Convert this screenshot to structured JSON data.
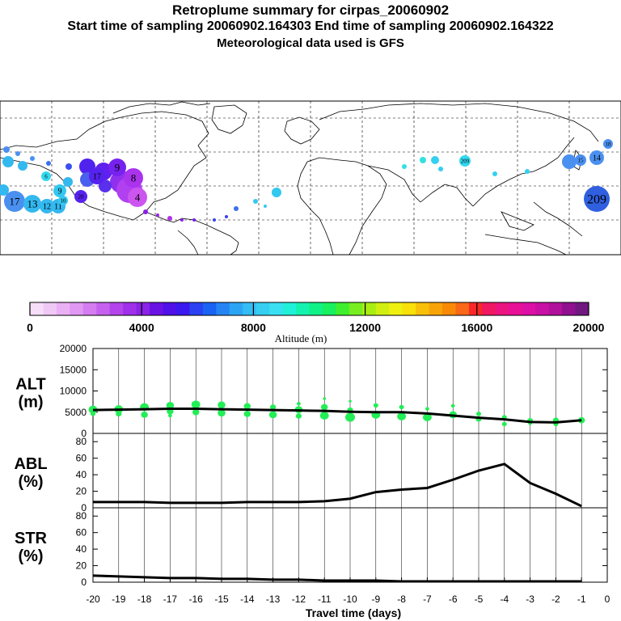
{
  "header": {
    "title": "Retroplume summary for cirpas_20060902",
    "sampling_line": "Start time of sampling 20060902.164303     End time of sampling 20060902.164322",
    "met_line": "Meteorological data used is GFS"
  },
  "colors": {
    "alt_marker": "#22ee55",
    "line": "#000000",
    "map_bg": "#ffffff",
    "map_land": "#000000"
  },
  "map": {
    "plume_labels": [
      {
        "text": "17",
        "color": "#4a90f0",
        "size": "large"
      },
      {
        "text": "13",
        "color": "#33b8f0",
        "size": "large"
      },
      {
        "text": "12",
        "color": "#33b8f0",
        "size": "medium"
      },
      {
        "text": "11",
        "color": "#33b8f0",
        "size": "medium"
      },
      {
        "text": "9",
        "color": "#33c8f0",
        "size": "medium"
      },
      {
        "text": "10",
        "color": "#33c8f0",
        "size": "small"
      },
      {
        "text": "209",
        "color": "#3060e0",
        "size": "xlarge"
      },
      {
        "text": "14",
        "color": "#4a90f0",
        "size": "medium"
      },
      {
        "text": "15",
        "color": "#4a90f0",
        "size": "small"
      },
      {
        "text": "18",
        "color": "#4a90f0",
        "size": "small"
      },
      {
        "text": "209",
        "color": "#33d8f0",
        "size": "small"
      },
      {
        "text": "8",
        "color": "#aa33ee",
        "size": "large"
      },
      {
        "text": "4",
        "color": "#cc55f0",
        "size": "large"
      },
      {
        "text": "9",
        "color": "#7722ee",
        "size": "large"
      },
      {
        "text": "17",
        "color": "#5522ee",
        "size": "medium"
      },
      {
        "text": "20",
        "color": "#5522ee",
        "size": "small"
      },
      {
        "text": "6",
        "color": "#33d8f0",
        "size": "small"
      }
    ]
  },
  "colorbar": {
    "tick_labels": [
      "0",
      "4000",
      "8000",
      "12000",
      "16000",
      "20000"
    ],
    "label": "Altitude (m)",
    "range": [
      0,
      20000
    ],
    "colors": [
      "#f6def8",
      "#f0c8f6",
      "#eab0f4",
      "#e098f2",
      "#d47cf0",
      "#c660ee",
      "#b444ec",
      "#a030ea",
      "#8a22e8",
      "#6a12e4",
      "#5010e8",
      "#3a18ee",
      "#2a40f2",
      "#1a62f4",
      "#2484f4",
      "#2ca4f4",
      "#34bcf4",
      "#36cef2",
      "#38e0f2",
      "#20f0d8",
      "#14f2b0",
      "#10f288",
      "#18f060",
      "#40ee30",
      "#78ee20",
      "#a8ee10",
      "#d0ee10",
      "#f0f010",
      "#f8e008",
      "#f8c008",
      "#f8a408",
      "#f88a08",
      "#f86818",
      "#f82828",
      "#f01860",
      "#ec1480",
      "#e81096",
      "#dc10a4",
      "#c810a4",
      "#b0109c",
      "#901090",
      "#701880"
    ]
  },
  "chart_data": [
    {
      "type": "scatter",
      "panel_label": "ALT",
      "panel_unit": "(m)",
      "ylim": [
        0,
        20000
      ],
      "yticks": [
        "0",
        "5000",
        "10000",
        "15000",
        "20000"
      ],
      "x": [
        -20,
        -19,
        -18,
        -17,
        -16,
        -15,
        -14,
        -13,
        -12,
        -11,
        -10,
        -9,
        -8,
        -7,
        -6,
        -5,
        -4,
        -3,
        -2,
        -1
      ],
      "median_line": [
        5500,
        5600,
        5700,
        5800,
        5800,
        5700,
        5600,
        5500,
        5400,
        5300,
        5100,
        5000,
        5000,
        4700,
        4200,
        3700,
        3300,
        2700,
        2600,
        3100
      ],
      "points": [
        {
          "x": -20,
          "y": 5600,
          "s": 9
        },
        {
          "x": -20,
          "y": 4600,
          "s": 5
        },
        {
          "x": -19,
          "y": 5700,
          "s": 9
        },
        {
          "x": -19,
          "y": 4600,
          "s": 6
        },
        {
          "x": -18,
          "y": 6200,
          "s": 9
        },
        {
          "x": -18,
          "y": 4400,
          "s": 7
        },
        {
          "x": -17,
          "y": 6600,
          "s": 8
        },
        {
          "x": -17,
          "y": 5200,
          "s": 7
        },
        {
          "x": -17,
          "y": 4200,
          "s": 4
        },
        {
          "x": -16,
          "y": 6800,
          "s": 9
        },
        {
          "x": -16,
          "y": 5000,
          "s": 7
        },
        {
          "x": -15,
          "y": 6700,
          "s": 8
        },
        {
          "x": -15,
          "y": 4800,
          "s": 8
        },
        {
          "x": -14,
          "y": 6400,
          "s": 7
        },
        {
          "x": -14,
          "y": 4600,
          "s": 7
        },
        {
          "x": -13,
          "y": 6200,
          "s": 6
        },
        {
          "x": -13,
          "y": 4400,
          "s": 8
        },
        {
          "x": -12,
          "y": 7000,
          "s": 4
        },
        {
          "x": -12,
          "y": 5600,
          "s": 8
        },
        {
          "x": -12,
          "y": 4100,
          "s": 6
        },
        {
          "x": -11,
          "y": 8200,
          "s": 3
        },
        {
          "x": -11,
          "y": 6200,
          "s": 7
        },
        {
          "x": -11,
          "y": 4200,
          "s": 9
        },
        {
          "x": -10,
          "y": 7600,
          "s": 3
        },
        {
          "x": -10,
          "y": 5500,
          "s": 6
        },
        {
          "x": -10,
          "y": 3800,
          "s": 10
        },
        {
          "x": -9,
          "y": 6600,
          "s": 5
        },
        {
          "x": -9,
          "y": 4400,
          "s": 9
        },
        {
          "x": -8,
          "y": 6200,
          "s": 5
        },
        {
          "x": -8,
          "y": 4000,
          "s": 9
        },
        {
          "x": -7,
          "y": 5800,
          "s": 4
        },
        {
          "x": -7,
          "y": 3800,
          "s": 9
        },
        {
          "x": -6,
          "y": 6500,
          "s": 4
        },
        {
          "x": -6,
          "y": 4400,
          "s": 8
        },
        {
          "x": -5,
          "y": 4600,
          "s": 5
        },
        {
          "x": -5,
          "y": 3400,
          "s": 6
        },
        {
          "x": -4,
          "y": 3800,
          "s": 5
        },
        {
          "x": -4,
          "y": 2200,
          "s": 5
        },
        {
          "x": -3,
          "y": 3000,
          "s": 6
        },
        {
          "x": -3,
          "y": 2400,
          "s": 4
        },
        {
          "x": -2,
          "y": 3100,
          "s": 6
        },
        {
          "x": -2,
          "y": 2200,
          "s": 5
        },
        {
          "x": -1,
          "y": 3100,
          "s": 7
        }
      ]
    },
    {
      "type": "line",
      "panel_label": "ABL",
      "panel_unit": "(%)",
      "ylim": [
        0,
        90
      ],
      "yticks": [
        "0",
        "20",
        "40",
        "60",
        "80"
      ],
      "x": [
        -20,
        -19,
        -18,
        -17,
        -16,
        -15,
        -14,
        -13,
        -12,
        -11,
        -10,
        -9,
        -8,
        -7,
        -6,
        -5,
        -4,
        -3,
        -2,
        -1
      ],
      "values": [
        7,
        7,
        7,
        6,
        6,
        6,
        7,
        7,
        7,
        8,
        11,
        19,
        22,
        24,
        34,
        45,
        53,
        30,
        17,
        2
      ]
    },
    {
      "type": "line",
      "panel_label": "STR",
      "panel_unit": "(%)",
      "ylim": [
        0,
        90
      ],
      "yticks": [
        "0",
        "20",
        "40",
        "60",
        "80"
      ],
      "x": [
        -20,
        -19,
        -18,
        -17,
        -16,
        -15,
        -14,
        -13,
        -12,
        -11,
        -10,
        -9,
        -8,
        -7,
        -6,
        -5,
        -4,
        -3,
        -2,
        -1
      ],
      "values": [
        8,
        7,
        6,
        5,
        5,
        4,
        4,
        3,
        3,
        2,
        2,
        2,
        1,
        1,
        1,
        1,
        1,
        1,
        1,
        1
      ]
    }
  ],
  "x_axis": {
    "label": "Travel time (days)",
    "ticks": [
      "-20",
      "-19",
      "-18",
      "-17",
      "-16",
      "-15",
      "-14",
      "-13",
      "-12",
      "-11",
      "-10",
      "-9",
      "-8",
      "-7",
      "-6",
      "-5",
      "-4",
      "-3",
      "-2",
      "-1",
      "0"
    ],
    "range": [
      -20,
      0
    ]
  }
}
